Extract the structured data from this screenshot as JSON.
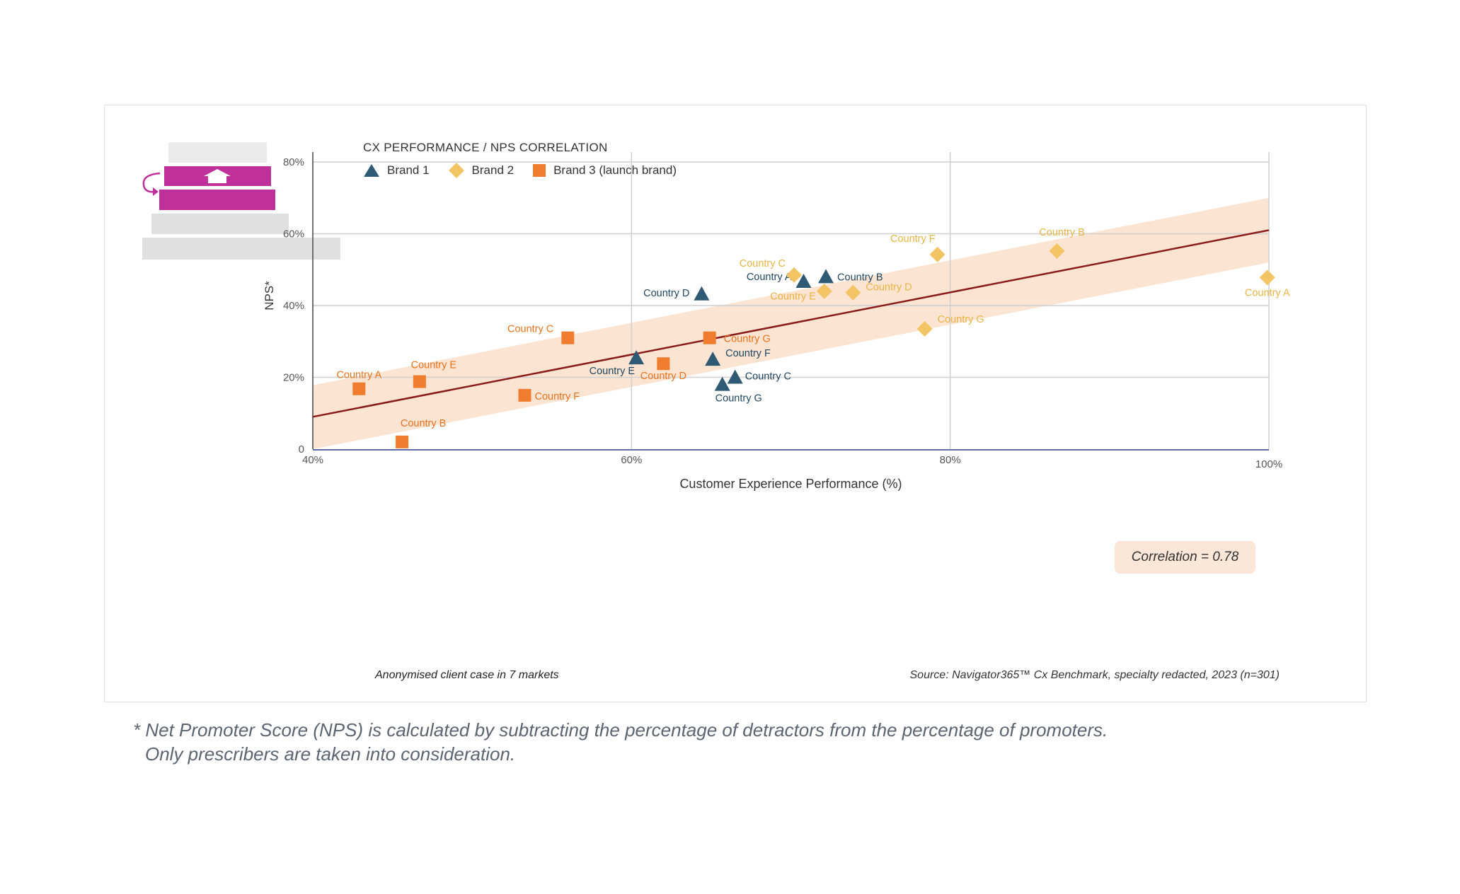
{
  "chart_data": {
    "type": "scatter",
    "title": "CX PERFORMANCE / NPS CORRELATION",
    "xlabel": "Customer Experience Performance (%)",
    "ylabel": "NPS*",
    "xlim": [
      40,
      100
    ],
    "ylim": [
      0,
      80
    ],
    "x_ticks": [
      "40%",
      "60%",
      "80%",
      "100%"
    ],
    "y_ticks": [
      "0",
      "20%",
      "40%",
      "60%",
      "80%"
    ],
    "x_tick_values": [
      40,
      60,
      80,
      100
    ],
    "y_tick_values": [
      0,
      20,
      40,
      60,
      80
    ],
    "grid": true,
    "legend_position": "top-left",
    "series": [
      {
        "name": "Brand 1",
        "marker": "triangle",
        "color": "#2e5a73",
        "label_color": "#1f4560",
        "points": [
          {
            "label": "Country A",
            "x": 70.8,
            "y": 46.5
          },
          {
            "label": "Country B",
            "x": 72.2,
            "y": 47.8
          },
          {
            "label": "Country C",
            "x": 66.5,
            "y": 19.8
          },
          {
            "label": "Country D",
            "x": 64.4,
            "y": 43.0
          },
          {
            "label": "Country E",
            "x": 60.3,
            "y": 25.2
          },
          {
            "label": "Country F",
            "x": 65.1,
            "y": 24.8
          },
          {
            "label": "Country G",
            "x": 65.7,
            "y": 17.8
          }
        ]
      },
      {
        "name": "Brand 2",
        "marker": "diamond",
        "color": "#f2c464",
        "label_color": "#e9b444",
        "points": [
          {
            "label": "Country A",
            "x": 99.9,
            "y": 47.8
          },
          {
            "label": "Country B",
            "x": 86.7,
            "y": 55.2
          },
          {
            "label": "Country C",
            "x": 70.2,
            "y": 48.5
          },
          {
            "label": "Country D",
            "x": 73.9,
            "y": 43.6
          },
          {
            "label": "Country E",
            "x": 72.1,
            "y": 44.0
          },
          {
            "label": "Country F",
            "x": 79.2,
            "y": 54.2
          },
          {
            "label": "Country G",
            "x": 78.4,
            "y": 33.5
          }
        ]
      },
      {
        "name": "Brand 3 (launch brand)",
        "marker": "square",
        "color": "#ef7d2d",
        "label_color": "#e8721c",
        "points": [
          {
            "label": "Country A",
            "x": 42.9,
            "y": 16.8
          },
          {
            "label": "Country B",
            "x": 45.6,
            "y": 2.0
          },
          {
            "label": "Country C",
            "x": 56.0,
            "y": 31.0
          },
          {
            "label": "Country D",
            "x": 62.0,
            "y": 23.8
          },
          {
            "label": "Country E",
            "x": 46.7,
            "y": 18.8
          },
          {
            "label": "Country F",
            "x": 53.3,
            "y": 15.0
          },
          {
            "label": "Country G",
            "x": 64.9,
            "y": 31.0
          }
        ]
      }
    ],
    "trendline": {
      "x": [
        40,
        100
      ],
      "y": [
        9.0,
        61.0
      ],
      "color": "#8a1b1b"
    },
    "confidence_band": {
      "x": [
        40,
        100
      ],
      "upper": [
        17.8,
        70.0
      ],
      "lower": [
        0.0,
        52.0
      ],
      "color": "#fbdfca"
    },
    "annotation": "Correlation = 0.78"
  },
  "captions": {
    "left": "Anonymised client case in 7 markets",
    "right": "Source:  Navigator365™ Cx Benchmark, specialty redacted, 2023 (n=301)"
  },
  "footnote": {
    "line1": "* Net Promoter Score (NPS) is calculated by subtracting the percentage of detractors from the percentage of promoters.",
    "line2": "Only prescribers are taken into consideration."
  },
  "colors": {
    "logo_magenta": "#c0309a",
    "logo_grey": "#e0e0e0",
    "grid": "#cfcfcf",
    "axis": "#4a4a4a",
    "baseline": "#2e3a8c"
  },
  "logo_icon": "stacked-steps-up-arrow-icon"
}
